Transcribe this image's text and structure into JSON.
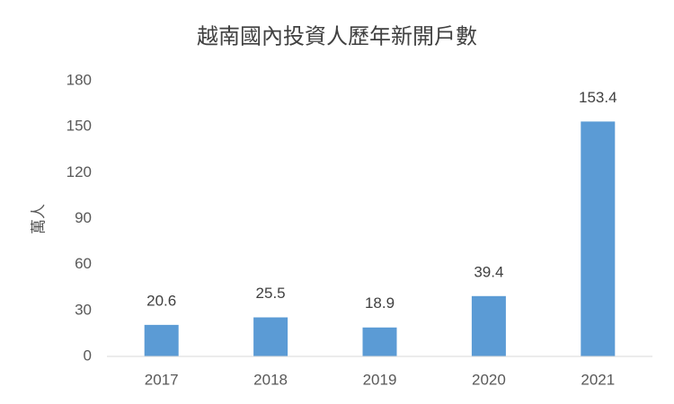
{
  "chart_data": {
    "type": "bar",
    "title": "越南國內投資人歷年新開戶數",
    "y_label": "萬人",
    "categories": [
      "2017",
      "2018",
      "2019",
      "2020",
      "2021"
    ],
    "values": [
      20.6,
      25.5,
      18.9,
      39.4,
      153.4
    ],
    "color": "#5b9bd5",
    "ylim": [
      0,
      180
    ],
    "yticks": [
      0,
      30,
      60,
      90,
      120,
      150,
      180
    ],
    "grid": false,
    "data_labels": true
  }
}
